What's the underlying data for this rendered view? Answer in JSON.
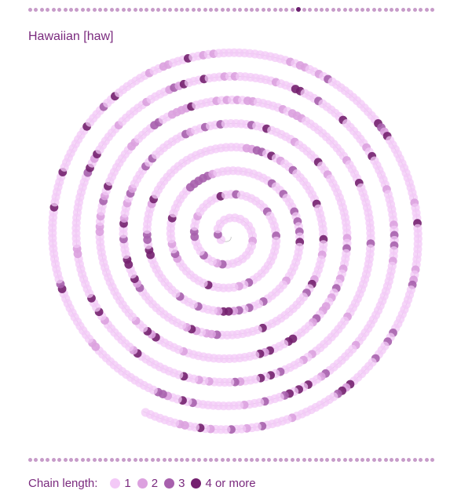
{
  "title": "Hawaiian [haw]",
  "pager": {
    "count": 70,
    "active_index": 46
  },
  "legend": {
    "label": "Chain length:",
    "items": [
      {
        "label": "1",
        "color": "#f3c9f7"
      },
      {
        "label": "2",
        "color": "#dca1df"
      },
      {
        "label": "3",
        "color": "#a760ad"
      },
      {
        "label": "4 or more",
        "color": "#74206f"
      }
    ]
  },
  "colors": {
    "spiral_line": "#b8b8b8",
    "text": "#7a2a7e"
  },
  "chart_data": {
    "type": "scatter",
    "layout": "spiral",
    "turns": 8.3,
    "points_per_turn_outer": 130,
    "chain_length_counts": {
      "1": 900,
      "2": 150,
      "3": 60,
      "4 or more": 60
    },
    "legend_placement": "bottom-left"
  }
}
